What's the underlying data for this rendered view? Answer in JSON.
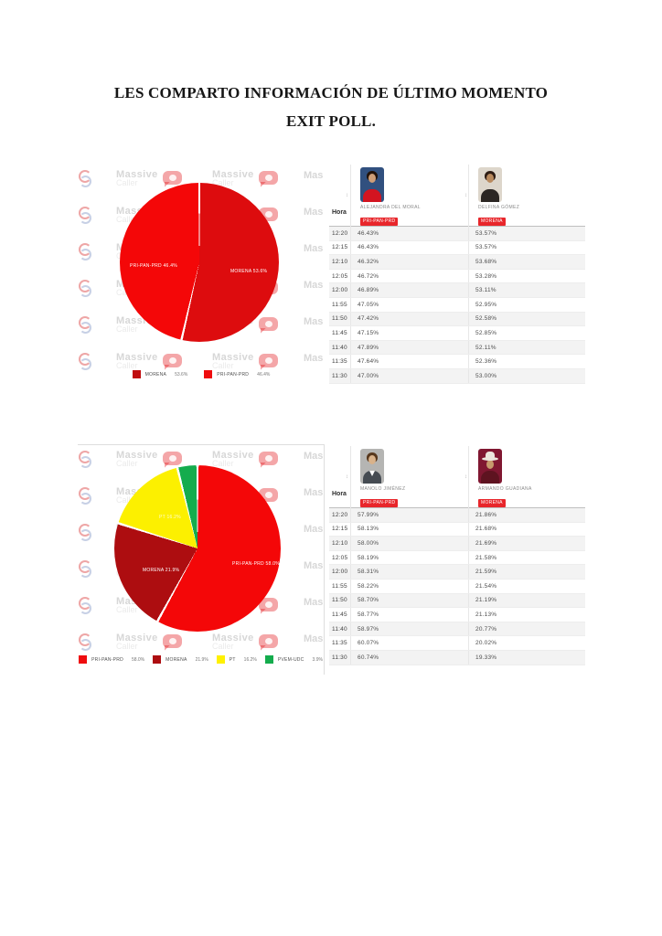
{
  "page": {
    "title_line1": "LES COMPARTO INFORMACIÓN DE ÚLTIMO MOMENTO",
    "title_line2": "EXIT POLL."
  },
  "watermark": {
    "brand": "Massive",
    "brand2": "Caller",
    "partial": "Mas"
  },
  "icons": {
    "sort": "↕"
  },
  "colors": {
    "party_badge_red": "#e8262b",
    "morena_dark_red": "#ad0d10",
    "coalition_bright_red": "#f40708",
    "pt_yellow": "#fcf000",
    "pvem_green": "#14ac4d"
  },
  "chart_data": [
    {
      "type": "pie",
      "title": "",
      "labels": [
        "MORENA",
        "PRI-PAN-PRD"
      ],
      "values": [
        53.6,
        46.4
      ],
      "colors": [
        "#dd0c0e",
        "#f40708"
      ],
      "slice_labels": [
        "MORENA 53.6%",
        "PRI-PAN-PRD 46.4%"
      ],
      "legend_position": "bottom",
      "legend": [
        {
          "label": "MORENA",
          "value": "53.6%",
          "color": "#c00d0f"
        },
        {
          "label": "PRI-PAN-PRD",
          "value": "46.4%",
          "color": "#ef0c0e"
        }
      ]
    },
    {
      "type": "pie",
      "title": "",
      "labels": [
        "PRI-PAN-PRD",
        "MORENA",
        "PT",
        "PVEM-UDC"
      ],
      "values": [
        58.0,
        21.9,
        16.2,
        3.9
      ],
      "colors": [
        "#f40708",
        "#ad0d10",
        "#fcf000",
        "#14ac4d"
      ],
      "slice_labels": [
        "PRI-PAN-PRD 58.0%",
        "MORENA 21.9%",
        "PT 16.2%"
      ],
      "legend_position": "bottom",
      "legend": [
        {
          "label": "PRI-PAN-PRD",
          "value": "58.0%",
          "color": "#ef0c0e"
        },
        {
          "label": "MORENA",
          "value": "21.9%",
          "color": "#ad0d10"
        },
        {
          "label": "PT",
          "value": "16.2%",
          "color": "#fff100"
        },
        {
          "label": "PVEM-UDC",
          "value": "3.9%",
          "color": "#14ac4d"
        }
      ]
    }
  ],
  "tables": [
    {
      "hora_label": "Hora",
      "candidates": [
        {
          "name": "ALEJANDRA DEL MORAL",
          "party": "PRI-PAN-PRD"
        },
        {
          "name": "DELFINA GÓMEZ",
          "party": "MORENA"
        }
      ],
      "rows": [
        {
          "time": "12:20",
          "c1": "46.43%",
          "c2": "53.57%"
        },
        {
          "time": "12:15",
          "c1": "46.43%",
          "c2": "53.57%"
        },
        {
          "time": "12:10",
          "c1": "46.32%",
          "c2": "53.68%"
        },
        {
          "time": "12:05",
          "c1": "46.72%",
          "c2": "53.28%"
        },
        {
          "time": "12:00",
          "c1": "46.89%",
          "c2": "53.11%"
        },
        {
          "time": "11:55",
          "c1": "47.05%",
          "c2": "52.95%"
        },
        {
          "time": "11:50",
          "c1": "47.42%",
          "c2": "52.58%"
        },
        {
          "time": "11:45",
          "c1": "47.15%",
          "c2": "52.85%"
        },
        {
          "time": "11:40",
          "c1": "47.89%",
          "c2": "52.11%"
        },
        {
          "time": "11:35",
          "c1": "47.64%",
          "c2": "52.36%"
        },
        {
          "time": "11:30",
          "c1": "47.00%",
          "c2": "53.00%"
        }
      ]
    },
    {
      "hora_label": "Hora",
      "candidates": [
        {
          "name": "MANOLO JIMÉNEZ",
          "party": "PRI-PAN-PRD"
        },
        {
          "name": "ARMANDO GUADIANA",
          "party": "MORENA"
        }
      ],
      "rows": [
        {
          "time": "12:20",
          "c1": "57.99%",
          "c2": "21.86%"
        },
        {
          "time": "12:15",
          "c1": "58.13%",
          "c2": "21.68%"
        },
        {
          "time": "12:10",
          "c1": "58.00%",
          "c2": "21.69%"
        },
        {
          "time": "12:05",
          "c1": "58.19%",
          "c2": "21.58%"
        },
        {
          "time": "12:00",
          "c1": "58.31%",
          "c2": "21.59%"
        },
        {
          "time": "11:55",
          "c1": "58.22%",
          "c2": "21.54%"
        },
        {
          "time": "11:50",
          "c1": "58.70%",
          "c2": "21.19%"
        },
        {
          "time": "11:45",
          "c1": "58.77%",
          "c2": "21.13%"
        },
        {
          "time": "11:40",
          "c1": "58.97%",
          "c2": "20.77%"
        },
        {
          "time": "11:35",
          "c1": "60.07%",
          "c2": "20.02%"
        },
        {
          "time": "11:30",
          "c1": "60.74%",
          "c2": "19.33%"
        }
      ]
    }
  ]
}
